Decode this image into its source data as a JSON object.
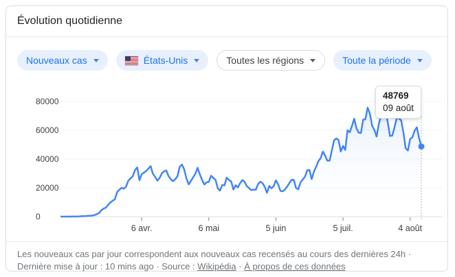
{
  "card": {
    "title": "Évolution quotidienne",
    "filters": [
      {
        "label": "Nouveaux cas"
      },
      {
        "label": "États-Unis"
      },
      {
        "label": "Toutes les régions"
      },
      {
        "label": "Toute la période"
      }
    ],
    "footer": {
      "text": "Les nouveaux cas par jour correspondent aux nouveaux cas recensés au cours des dernières 24h · Dernière mise à jour : 10 mins ago",
      "sep": " · ",
      "source_label": "Source : ",
      "wikipedia_link": "Wikipédia",
      "about_link": "À propos de ces données"
    }
  },
  "tooltip": {
    "value": "48769",
    "date": "09 août"
  },
  "chart_data": {
    "type": "line",
    "title": "Évolution quotidienne",
    "series_name": "Nouveaux cas",
    "region": "États-Unis",
    "line_color": "#4285f4",
    "grid": true,
    "ylim": [
      0,
      86000
    ],
    "y_ticks": [
      0,
      20000,
      40000,
      60000,
      80000
    ],
    "x_tick_labels": [
      "6 avr.",
      "6 mai",
      "5 juin",
      "5 juil.",
      "4 août"
    ],
    "x_tick_indices": [
      36,
      66,
      96,
      126,
      156
    ],
    "highlight": {
      "index": 161,
      "value": 48769,
      "label": "09 août"
    },
    "values": [
      24,
      20,
      31,
      53,
      66,
      104,
      118,
      141,
      186,
      271,
      366,
      426,
      588,
      601,
      773,
      1133,
      1789,
      2563,
      4530,
      5594,
      6343,
      8149,
      9883,
      11075,
      12017,
      17050,
      18695,
      19979,
      19408,
      20921,
      24914,
      26655,
      28103,
      32425,
      34196,
      25316,
      29595,
      30613,
      31709,
      33323,
      35098,
      29861,
      27620,
      25023,
      26922,
      30148,
      31451,
      32165,
      28085,
      25995,
      24601,
      25985,
      28065,
      34772,
      36188,
      32796,
      26509,
      22412,
      24790,
      27327,
      29917,
      33955,
      29288,
      25501,
      22335,
      23841,
      24128,
      28420,
      26906,
      25612,
      19731,
      18117,
      22048,
      21712,
      27143,
      25508,
      24487,
      18873,
      21841,
      20289,
      23285,
      25434,
      24147,
      21236,
      19790,
      18439,
      18800,
      18721,
      22577,
      24266,
      23290,
      20724,
      16571,
      21277,
      19699,
      21140,
      25251,
      22436,
      17919,
      17598,
      18822,
      20801,
      23283,
      25641,
      25540,
      19920,
      19023,
      23774,
      25894,
      27762,
      32218,
      32411,
      26079,
      31402,
      34720,
      38672,
      40588,
      45255,
      42486,
      38835,
      38910,
      46042,
      52982,
      54357,
      53213,
      45255,
      49199,
      46329,
      60021,
      58601,
      63004,
      68042,
      61352,
      58349,
      58114,
      67417,
      67632,
      75697,
      71558,
      63201,
      60207,
      55607,
      64519,
      69994,
      68804,
      73715,
      65490,
      55985,
      56336,
      61734,
      68669,
      68032,
      67023,
      58429,
      47511,
      45952,
      53847,
      55148,
      59699,
      62042,
      54590,
      48769
    ]
  }
}
